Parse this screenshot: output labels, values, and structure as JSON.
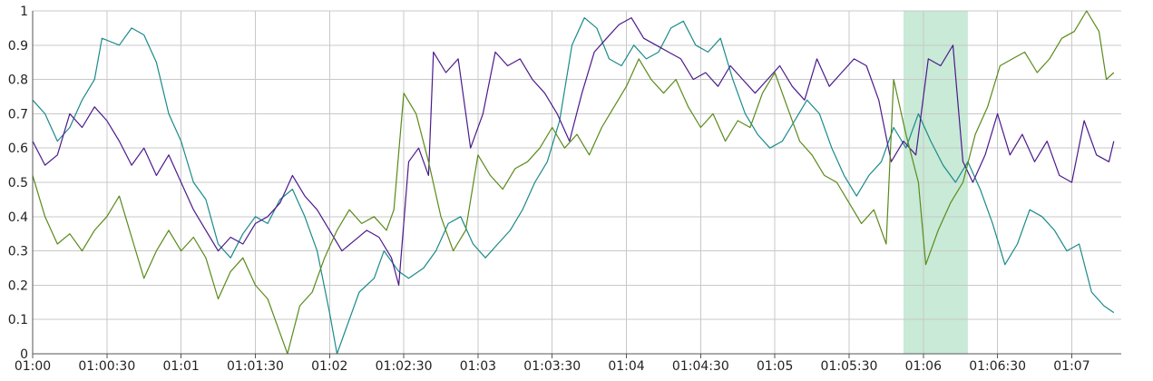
{
  "chart_data": {
    "type": "line",
    "title": "",
    "xlabel": "",
    "ylabel": "",
    "x_range_seconds": [
      "01:00:00",
      "01:07:20"
    ],
    "ylim": [
      0,
      1
    ],
    "grid": true,
    "legend": "none",
    "x_ticks": [
      "01:00",
      "01:00:30",
      "01:01",
      "01:01:30",
      "01:02",
      "01:02:30",
      "01:03",
      "01:03:30",
      "01:04",
      "01:04:30",
      "01:05",
      "01:05:30",
      "01:06",
      "01:06:30",
      "01:07"
    ],
    "y_ticks": [
      "0",
      "0.1",
      "0.2",
      "0.3",
      "0.4",
      "0.5",
      "0.6",
      "0.7",
      "0.8",
      "0.9",
      "1"
    ],
    "highlight_band": {
      "x_start": "01:05:52",
      "x_end": "01:06:18",
      "color": "#c8ead6"
    },
    "series": [
      {
        "color": "#1a8a8a",
        "points": [
          [
            "01:00:00",
            0.74
          ],
          [
            "01:00:05",
            0.7
          ],
          [
            "01:00:10",
            0.62
          ],
          [
            "01:00:15",
            0.66
          ],
          [
            "01:00:20",
            0.74
          ],
          [
            "01:00:25",
            0.8
          ],
          [
            "01:00:28",
            0.92
          ],
          [
            "01:00:35",
            0.9
          ],
          [
            "01:00:40",
            0.95
          ],
          [
            "01:00:45",
            0.93
          ],
          [
            "01:00:50",
            0.85
          ],
          [
            "01:00:55",
            0.7
          ],
          [
            "01:01:00",
            0.62
          ],
          [
            "01:01:05",
            0.5
          ],
          [
            "01:01:10",
            0.45
          ],
          [
            "01:01:15",
            0.32
          ],
          [
            "01:01:20",
            0.28
          ],
          [
            "01:01:25",
            0.35
          ],
          [
            "01:01:30",
            0.4
          ],
          [
            "01:01:35",
            0.38
          ],
          [
            "01:01:40",
            0.45
          ],
          [
            "01:01:45",
            0.48
          ],
          [
            "01:01:50",
            0.4
          ],
          [
            "01:01:55",
            0.3
          ],
          [
            "01:02:00",
            0.12
          ],
          [
            "01:02:03",
            0.0
          ],
          [
            "01:02:08",
            0.1
          ],
          [
            "01:02:12",
            0.18
          ],
          [
            "01:02:18",
            0.22
          ],
          [
            "01:02:22",
            0.3
          ],
          [
            "01:02:28",
            0.24
          ],
          [
            "01:02:32",
            0.22
          ],
          [
            "01:02:38",
            0.25
          ],
          [
            "01:02:43",
            0.3
          ],
          [
            "01:02:48",
            0.38
          ],
          [
            "01:02:53",
            0.4
          ],
          [
            "01:02:58",
            0.32
          ],
          [
            "01:03:03",
            0.28
          ],
          [
            "01:03:08",
            0.32
          ],
          [
            "01:03:13",
            0.36
          ],
          [
            "01:03:18",
            0.42
          ],
          [
            "01:03:23",
            0.5
          ],
          [
            "01:03:28",
            0.56
          ],
          [
            "01:03:33",
            0.68
          ],
          [
            "01:03:38",
            0.9
          ],
          [
            "01:03:43",
            0.98
          ],
          [
            "01:03:48",
            0.95
          ],
          [
            "01:03:53",
            0.86
          ],
          [
            "01:03:58",
            0.84
          ],
          [
            "01:04:03",
            0.9
          ],
          [
            "01:04:08",
            0.86
          ],
          [
            "01:04:13",
            0.88
          ],
          [
            "01:04:18",
            0.95
          ],
          [
            "01:04:23",
            0.97
          ],
          [
            "01:04:28",
            0.9
          ],
          [
            "01:04:33",
            0.88
          ],
          [
            "01:04:38",
            0.92
          ],
          [
            "01:04:43",
            0.8
          ],
          [
            "01:04:48",
            0.7
          ],
          [
            "01:04:53",
            0.64
          ],
          [
            "01:04:58",
            0.6
          ],
          [
            "01:05:03",
            0.62
          ],
          [
            "01:05:08",
            0.68
          ],
          [
            "01:05:13",
            0.74
          ],
          [
            "01:05:18",
            0.7
          ],
          [
            "01:05:23",
            0.6
          ],
          [
            "01:05:28",
            0.52
          ],
          [
            "01:05:33",
            0.46
          ],
          [
            "01:05:38",
            0.52
          ],
          [
            "01:05:43",
            0.56
          ],
          [
            "01:05:48",
            0.66
          ],
          [
            "01:05:53",
            0.6
          ],
          [
            "01:05:58",
            0.7
          ],
          [
            "01:06:03",
            0.62
          ],
          [
            "01:06:08",
            0.55
          ],
          [
            "01:06:13",
            0.5
          ],
          [
            "01:06:18",
            0.56
          ],
          [
            "01:06:23",
            0.48
          ],
          [
            "01:06:28",
            0.38
          ],
          [
            "01:06:33",
            0.26
          ],
          [
            "01:06:38",
            0.32
          ],
          [
            "01:06:43",
            0.42
          ],
          [
            "01:06:48",
            0.4
          ],
          [
            "01:06:53",
            0.36
          ],
          [
            "01:06:58",
            0.3
          ],
          [
            "01:07:03",
            0.32
          ],
          [
            "01:07:08",
            0.18
          ],
          [
            "01:07:13",
            0.14
          ],
          [
            "01:07:17",
            0.12
          ]
        ]
      },
      {
        "color": "#4b1a8a",
        "points": [
          [
            "01:00:00",
            0.62
          ],
          [
            "01:00:05",
            0.55
          ],
          [
            "01:00:10",
            0.58
          ],
          [
            "01:00:15",
            0.7
          ],
          [
            "01:00:20",
            0.66
          ],
          [
            "01:00:25",
            0.72
          ],
          [
            "01:00:30",
            0.68
          ],
          [
            "01:00:35",
            0.62
          ],
          [
            "01:00:40",
            0.55
          ],
          [
            "01:00:45",
            0.6
          ],
          [
            "01:00:50",
            0.52
          ],
          [
            "01:00:55",
            0.58
          ],
          [
            "01:01:00",
            0.5
          ],
          [
            "01:01:05",
            0.42
          ],
          [
            "01:01:10",
            0.36
          ],
          [
            "01:01:15",
            0.3
          ],
          [
            "01:01:20",
            0.34
          ],
          [
            "01:01:25",
            0.32
          ],
          [
            "01:01:30",
            0.38
          ],
          [
            "01:01:35",
            0.4
          ],
          [
            "01:01:40",
            0.44
          ],
          [
            "01:01:45",
            0.52
          ],
          [
            "01:01:50",
            0.46
          ],
          [
            "01:01:55",
            0.42
          ],
          [
            "01:02:00",
            0.36
          ],
          [
            "01:02:05",
            0.3
          ],
          [
            "01:02:10",
            0.33
          ],
          [
            "01:02:15",
            0.36
          ],
          [
            "01:02:20",
            0.34
          ],
          [
            "01:02:25",
            0.28
          ],
          [
            "01:02:28",
            0.2
          ],
          [
            "01:02:32",
            0.56
          ],
          [
            "01:02:36",
            0.6
          ],
          [
            "01:02:40",
            0.52
          ],
          [
            "01:02:42",
            0.88
          ],
          [
            "01:02:47",
            0.82
          ],
          [
            "01:02:52",
            0.86
          ],
          [
            "01:02:57",
            0.6
          ],
          [
            "01:03:02",
            0.7
          ],
          [
            "01:03:07",
            0.88
          ],
          [
            "01:03:12",
            0.84
          ],
          [
            "01:03:17",
            0.86
          ],
          [
            "01:03:22",
            0.8
          ],
          [
            "01:03:27",
            0.76
          ],
          [
            "01:03:32",
            0.7
          ],
          [
            "01:03:37",
            0.62
          ],
          [
            "01:03:42",
            0.76
          ],
          [
            "01:03:47",
            0.88
          ],
          [
            "01:03:52",
            0.92
          ],
          [
            "01:03:57",
            0.96
          ],
          [
            "01:04:02",
            0.98
          ],
          [
            "01:04:07",
            0.92
          ],
          [
            "01:04:12",
            0.9
          ],
          [
            "01:04:17",
            0.88
          ],
          [
            "01:04:22",
            0.86
          ],
          [
            "01:04:27",
            0.8
          ],
          [
            "01:04:32",
            0.82
          ],
          [
            "01:04:37",
            0.78
          ],
          [
            "01:04:42",
            0.84
          ],
          [
            "01:04:47",
            0.8
          ],
          [
            "01:04:52",
            0.76
          ],
          [
            "01:04:57",
            0.8
          ],
          [
            "01:05:02",
            0.84
          ],
          [
            "01:05:07",
            0.78
          ],
          [
            "01:05:12",
            0.74
          ],
          [
            "01:05:17",
            0.86
          ],
          [
            "01:05:22",
            0.78
          ],
          [
            "01:05:27",
            0.82
          ],
          [
            "01:05:32",
            0.86
          ],
          [
            "01:05:37",
            0.84
          ],
          [
            "01:05:42",
            0.74
          ],
          [
            "01:05:47",
            0.56
          ],
          [
            "01:05:52",
            0.62
          ],
          [
            "01:05:57",
            0.58
          ],
          [
            "01:06:02",
            0.86
          ],
          [
            "01:06:07",
            0.84
          ],
          [
            "01:06:12",
            0.9
          ],
          [
            "01:06:16",
            0.56
          ],
          [
            "01:06:20",
            0.5
          ],
          [
            "01:06:25",
            0.58
          ],
          [
            "01:06:30",
            0.7
          ],
          [
            "01:06:35",
            0.58
          ],
          [
            "01:06:40",
            0.64
          ],
          [
            "01:06:45",
            0.56
          ],
          [
            "01:06:50",
            0.62
          ],
          [
            "01:06:55",
            0.52
          ],
          [
            "01:07:00",
            0.5
          ],
          [
            "01:07:05",
            0.68
          ],
          [
            "01:07:10",
            0.58
          ],
          [
            "01:07:15",
            0.56
          ],
          [
            "01:07:17",
            0.62
          ]
        ]
      },
      {
        "color": "#5a8a1a",
        "points": [
          [
            "01:00:00",
            0.52
          ],
          [
            "01:00:05",
            0.4
          ],
          [
            "01:00:10",
            0.32
          ],
          [
            "01:00:15",
            0.35
          ],
          [
            "01:00:20",
            0.3
          ],
          [
            "01:00:25",
            0.36
          ],
          [
            "01:00:30",
            0.4
          ],
          [
            "01:00:35",
            0.46
          ],
          [
            "01:00:40",
            0.34
          ],
          [
            "01:00:45",
            0.22
          ],
          [
            "01:00:50",
            0.3
          ],
          [
            "01:00:55",
            0.36
          ],
          [
            "01:01:00",
            0.3
          ],
          [
            "01:01:05",
            0.34
          ],
          [
            "01:01:10",
            0.28
          ],
          [
            "01:01:15",
            0.16
          ],
          [
            "01:01:20",
            0.24
          ],
          [
            "01:01:25",
            0.28
          ],
          [
            "01:01:30",
            0.2
          ],
          [
            "01:01:35",
            0.16
          ],
          [
            "01:01:40",
            0.06
          ],
          [
            "01:01:43",
            0.0
          ],
          [
            "01:01:48",
            0.14
          ],
          [
            "01:01:53",
            0.18
          ],
          [
            "01:01:58",
            0.28
          ],
          [
            "01:02:03",
            0.36
          ],
          [
            "01:02:08",
            0.42
          ],
          [
            "01:02:13",
            0.38
          ],
          [
            "01:02:18",
            0.4
          ],
          [
            "01:02:23",
            0.36
          ],
          [
            "01:02:26",
            0.42
          ],
          [
            "01:02:30",
            0.76
          ],
          [
            "01:02:35",
            0.7
          ],
          [
            "01:02:40",
            0.56
          ],
          [
            "01:02:45",
            0.4
          ],
          [
            "01:02:50",
            0.3
          ],
          [
            "01:02:55",
            0.36
          ],
          [
            "01:03:00",
            0.58
          ],
          [
            "01:03:05",
            0.52
          ],
          [
            "01:03:10",
            0.48
          ],
          [
            "01:03:15",
            0.54
          ],
          [
            "01:03:20",
            0.56
          ],
          [
            "01:03:25",
            0.6
          ],
          [
            "01:03:30",
            0.66
          ],
          [
            "01:03:35",
            0.6
          ],
          [
            "01:03:40",
            0.64
          ],
          [
            "01:03:45",
            0.58
          ],
          [
            "01:03:50",
            0.66
          ],
          [
            "01:03:55",
            0.72
          ],
          [
            "01:04:00",
            0.78
          ],
          [
            "01:04:05",
            0.86
          ],
          [
            "01:04:10",
            0.8
          ],
          [
            "01:04:15",
            0.76
          ],
          [
            "01:04:20",
            0.8
          ],
          [
            "01:04:25",
            0.72
          ],
          [
            "01:04:30",
            0.66
          ],
          [
            "01:04:35",
            0.7
          ],
          [
            "01:04:40",
            0.62
          ],
          [
            "01:04:45",
            0.68
          ],
          [
            "01:04:50",
            0.66
          ],
          [
            "01:04:55",
            0.76
          ],
          [
            "01:05:00",
            0.82
          ],
          [
            "01:05:05",
            0.72
          ],
          [
            "01:05:10",
            0.62
          ],
          [
            "01:05:15",
            0.58
          ],
          [
            "01:05:20",
            0.52
          ],
          [
            "01:05:25",
            0.5
          ],
          [
            "01:05:30",
            0.44
          ],
          [
            "01:05:35",
            0.38
          ],
          [
            "01:05:40",
            0.42
          ],
          [
            "01:05:45",
            0.32
          ],
          [
            "01:05:48",
            0.8
          ],
          [
            "01:05:53",
            0.64
          ],
          [
            "01:05:58",
            0.5
          ],
          [
            "01:06:01",
            0.26
          ],
          [
            "01:06:06",
            0.36
          ],
          [
            "01:06:11",
            0.44
          ],
          [
            "01:06:16",
            0.5
          ],
          [
            "01:06:21",
            0.64
          ],
          [
            "01:06:26",
            0.72
          ],
          [
            "01:06:31",
            0.84
          ],
          [
            "01:06:36",
            0.86
          ],
          [
            "01:06:41",
            0.88
          ],
          [
            "01:06:46",
            0.82
          ],
          [
            "01:06:51",
            0.86
          ],
          [
            "01:06:56",
            0.92
          ],
          [
            "01:07:01",
            0.94
          ],
          [
            "01:07:06",
            1.0
          ],
          [
            "01:07:11",
            0.94
          ],
          [
            "01:07:14",
            0.8
          ],
          [
            "01:07:17",
            0.82
          ]
        ]
      }
    ]
  }
}
